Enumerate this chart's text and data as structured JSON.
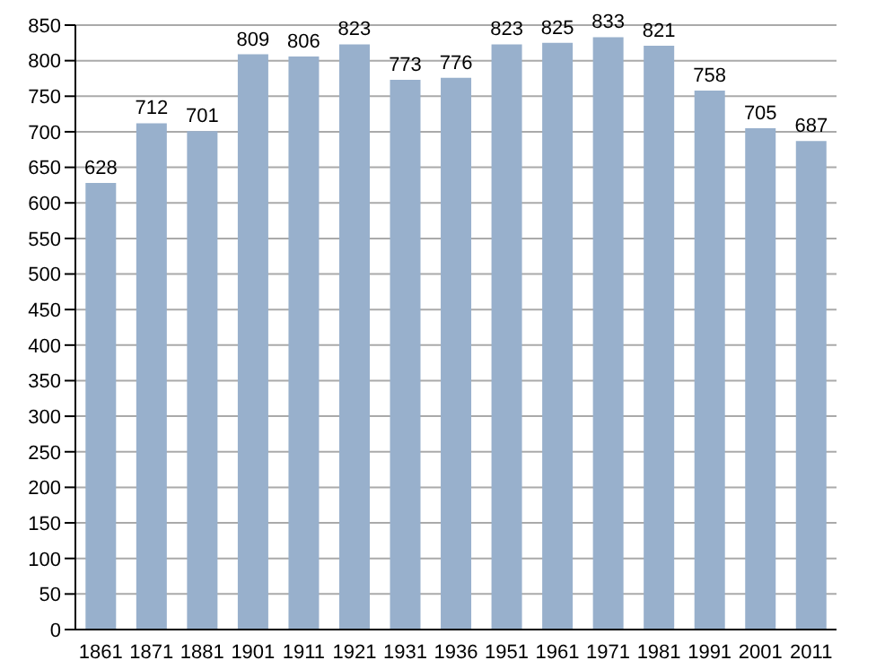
{
  "chart_data": {
    "type": "bar",
    "categories": [
      "1861",
      "1871",
      "1881",
      "1901",
      "1911",
      "1921",
      "1931",
      "1936",
      "1951",
      "1961",
      "1971",
      "1981",
      "1991",
      "2001",
      "2011"
    ],
    "values": [
      628,
      712,
      701,
      809,
      806,
      823,
      773,
      776,
      823,
      825,
      833,
      821,
      758,
      705,
      687
    ],
    "color": "#98b0cc",
    "ylim": [
      0,
      850
    ],
    "yticks": [
      0,
      50,
      100,
      150,
      200,
      250,
      300,
      350,
      400,
      450,
      500,
      550,
      600,
      650,
      700,
      750,
      800,
      850
    ],
    "grid": "y",
    "data_labels": true
  }
}
